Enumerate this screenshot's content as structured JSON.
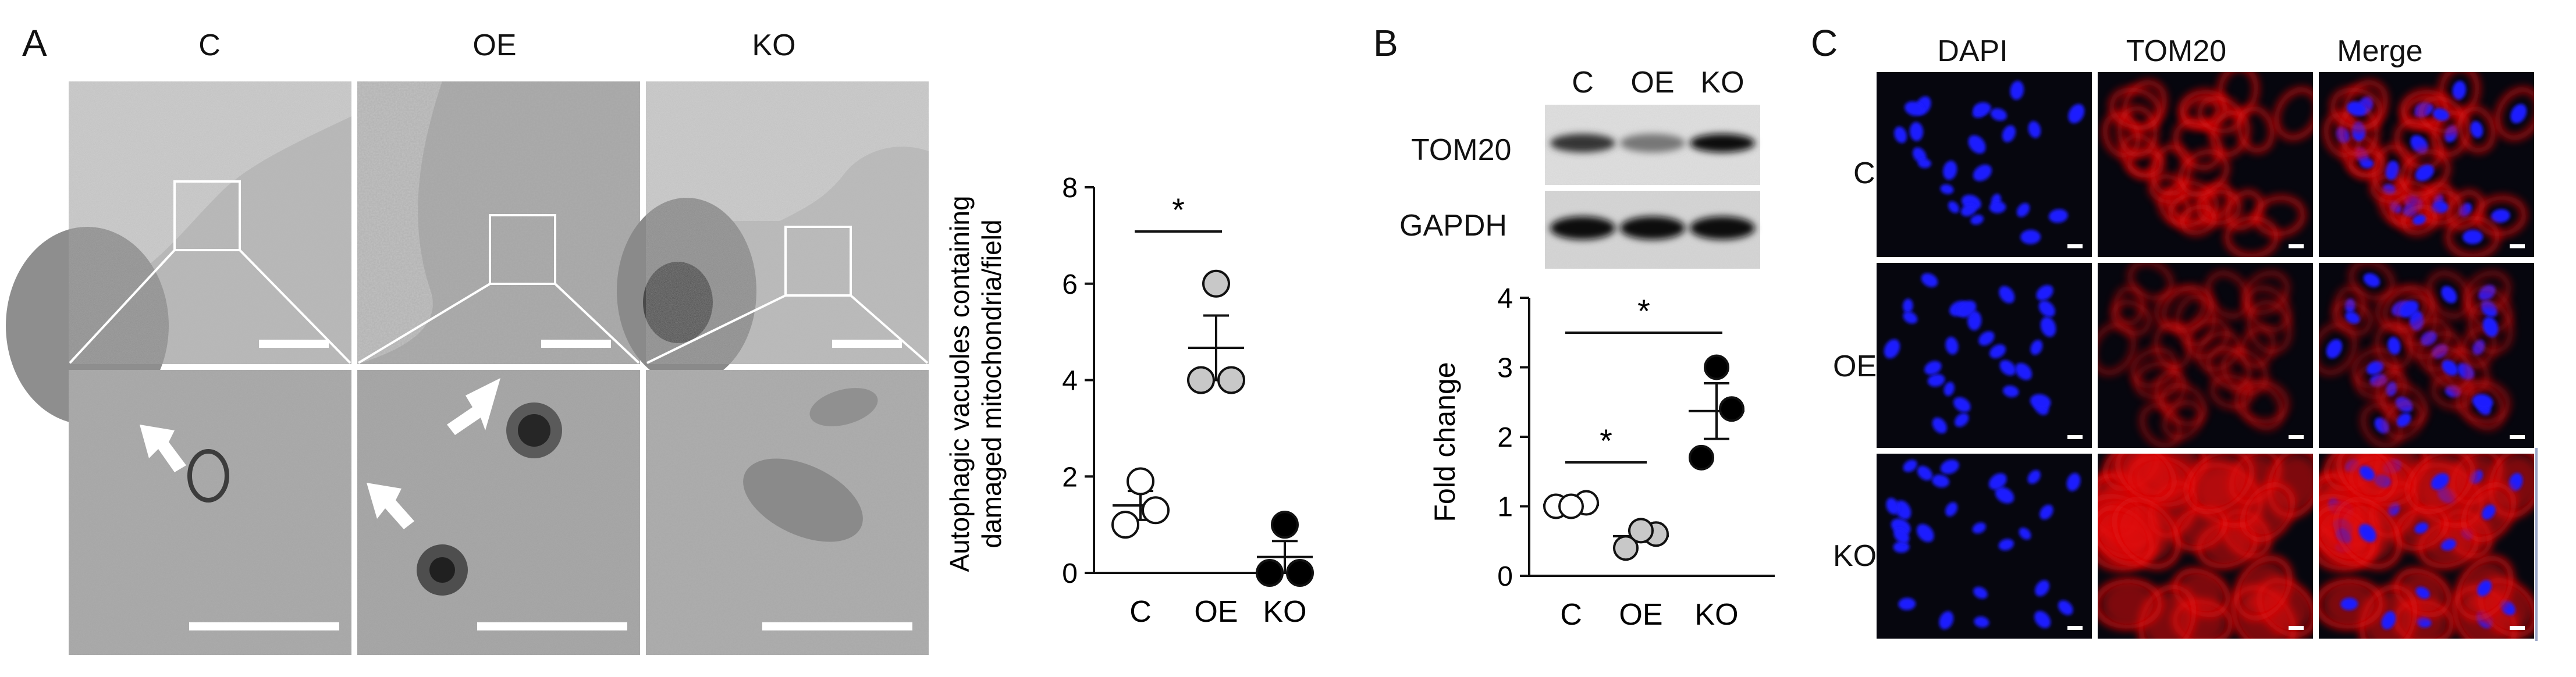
{
  "panels": {
    "a": "A",
    "b": "B",
    "c": "C"
  },
  "em": {
    "columns": [
      "C",
      "OE",
      "KO"
    ]
  },
  "chart_a": {
    "type": "scatter",
    "categories": [
      "C",
      "OE",
      "KO"
    ],
    "ylabel_line1": "Autophagic vacuoles containing",
    "ylabel_line2": "damaged mitochondria/field",
    "ylim": [
      0,
      8
    ],
    "yticks": [
      0,
      2,
      4,
      6,
      8
    ],
    "significance": "*",
    "colors": {
      "C": "#ffffff",
      "OE": "#c8c8c8",
      "KO": "#000000"
    }
  },
  "blot": {
    "lanes": [
      "C",
      "OE",
      "KO"
    ],
    "rows": [
      "TOM20",
      "GAPDH"
    ],
    "band_intensity": {
      "TOM20": [
        0.75,
        0.45,
        0.95
      ],
      "GAPDH": [
        0.95,
        0.95,
        0.95
      ]
    }
  },
  "chart_b": {
    "type": "scatter",
    "categories": [
      "C",
      "OE",
      "KO"
    ],
    "ylabel": "Fold change",
    "ylim": [
      0,
      4
    ],
    "yticks": [
      0,
      1,
      2,
      3,
      4
    ],
    "significance": "*",
    "colors": {
      "C": "#ffffff",
      "OE": "#c8c8c8",
      "KO": "#000000"
    }
  },
  "chart_data": [
    {
      "type": "scatter",
      "categories": [
        "C",
        "OE",
        "KO"
      ],
      "ylabel": "Autophagic vacuoles containing damaged mitochondria/field",
      "ylim": [
        0,
        8
      ],
      "series": [
        {
          "category": "C",
          "points": [
            1.0,
            1.3,
            1.9
          ],
          "mean": 1.4,
          "sem": 0.3
        },
        {
          "category": "OE",
          "points": [
            4.0,
            4.0,
            6.0
          ],
          "mean": 4.67,
          "sem": 0.67
        },
        {
          "category": "KO",
          "points": [
            0.0,
            0.0,
            1.0
          ],
          "mean": 0.33,
          "sem": 0.33
        }
      ],
      "significance": [
        {
          "from": "C",
          "to": "OE",
          "label": "*"
        }
      ]
    },
    {
      "type": "scatter",
      "categories": [
        "C",
        "OE",
        "KO"
      ],
      "ylabel": "Fold change",
      "ylim": [
        0,
        4
      ],
      "series": [
        {
          "category": "C",
          "points": [
            1.0,
            1.05,
            1.0
          ],
          "mean": 1.02,
          "sem": 0.02
        },
        {
          "category": "OE",
          "points": [
            0.4,
            0.6,
            0.65
          ],
          "mean": 0.57,
          "sem": 0.08
        },
        {
          "category": "KO",
          "points": [
            1.7,
            2.4,
            3.0
          ],
          "mean": 2.37,
          "sem": 0.4
        }
      ],
      "significance": [
        {
          "from": "C",
          "to": "OE",
          "label": "*"
        },
        {
          "from": "C",
          "to": "KO",
          "label": "*"
        }
      ]
    }
  ],
  "fluorescence": {
    "columns": [
      "DAPI",
      "TOM20",
      "Merge"
    ],
    "rows": [
      "C",
      "OE",
      "KO"
    ],
    "colors": {
      "nucleus": "#1a1aff",
      "tom20": "#e01010"
    }
  }
}
